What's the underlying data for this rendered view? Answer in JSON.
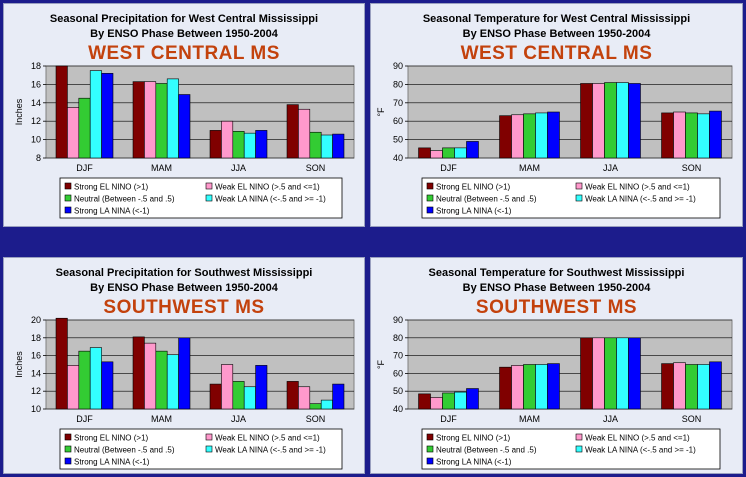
{
  "series_colors": [
    "#800000",
    "#ff99cc",
    "#33cc33",
    "#33ffff",
    "#0000ff"
  ],
  "legend": [
    "Strong EL NINO (>1)",
    "Weak EL NINO (>.5 and <=1)",
    "Neutral (Between -.5 and .5)",
    "Weak LA NINA (<-.5 and >= -1)",
    "Strong LA NINA (<-1)"
  ],
  "chart_data": [
    {
      "type": "bar",
      "title": "Seasonal Precipitation for West Central Mississippi",
      "subtitle": "By ENSO Phase Between 1950-2004",
      "region_label": "WEST CENTRAL MS",
      "ylabel": "Inches",
      "ylim": [
        8,
        18
      ],
      "yticks": [
        8,
        10,
        12,
        14,
        16,
        18
      ],
      "categories": [
        "DJF",
        "MAM",
        "JJA",
        "SON"
      ],
      "series": [
        {
          "name": "Strong EL NINO (>1)",
          "values": [
            18.0,
            16.3,
            11.0,
            13.8
          ]
        },
        {
          "name": "Weak EL NINO (>.5 and <=1)",
          "values": [
            13.5,
            16.3,
            12.0,
            13.3
          ]
        },
        {
          "name": "Neutral (Between -.5 and .5)",
          "values": [
            14.5,
            16.1,
            10.9,
            10.8
          ]
        },
        {
          "name": "Weak LA NINA (<-.5 and >= -1)",
          "values": [
            17.5,
            16.6,
            10.7,
            10.5
          ]
        },
        {
          "name": "Strong LA NINA (<-1)",
          "values": [
            17.2,
            14.9,
            11.0,
            10.6
          ]
        }
      ]
    },
    {
      "type": "bar",
      "title": "Seasonal Temperature for West Central Mississippi",
      "subtitle": "By ENSO Phase Between 1950-2004",
      "region_label": "WEST CENTRAL MS",
      "ylabel": "°F",
      "ylim": [
        40,
        90
      ],
      "yticks": [
        40,
        50,
        60,
        70,
        80,
        90
      ],
      "categories": [
        "DJF",
        "MAM",
        "JJA",
        "SON"
      ],
      "series": [
        {
          "name": "Strong EL NINO (>1)",
          "values": [
            45.5,
            63.0,
            80.5,
            64.5
          ]
        },
        {
          "name": "Weak EL NINO (>.5 and <=1)",
          "values": [
            44.0,
            63.5,
            80.5,
            65.0
          ]
        },
        {
          "name": "Neutral (Between -.5 and .5)",
          "values": [
            45.5,
            64.0,
            81.0,
            64.5
          ]
        },
        {
          "name": "Weak LA NINA (<-.5 and >= -1)",
          "values": [
            45.5,
            64.5,
            81.0,
            64.0
          ]
        },
        {
          "name": "Strong LA NINA (<-1)",
          "values": [
            49.0,
            65.0,
            80.5,
            65.5
          ]
        }
      ]
    },
    {
      "type": "bar",
      "title": "Seasonal Precipitation for Southwest Mississippi",
      "subtitle": "By ENSO Phase Between 1950-2004",
      "region_label": "SOUTHWEST MS",
      "ylabel": "Inches",
      "ylim": [
        10,
        20
      ],
      "yticks": [
        10,
        12,
        14,
        16,
        18,
        20
      ],
      "categories": [
        "DJF",
        "MAM",
        "JJA",
        "SON"
      ],
      "series": [
        {
          "name": "Strong EL NINO (>1)",
          "values": [
            20.2,
            18.1,
            12.8,
            13.1
          ]
        },
        {
          "name": "Weak EL NINO (>.5 and <=1)",
          "values": [
            14.9,
            17.4,
            15.0,
            12.5
          ]
        },
        {
          "name": "Neutral (Between -.5 and .5)",
          "values": [
            16.5,
            16.5,
            13.1,
            10.6
          ]
        },
        {
          "name": "Weak LA NINA (<-.5 and >= -1)",
          "values": [
            16.9,
            16.1,
            12.5,
            11.0
          ]
        },
        {
          "name": "Strong LA NINA (<-1)",
          "values": [
            15.3,
            18.0,
            14.9,
            12.8
          ]
        }
      ]
    },
    {
      "type": "bar",
      "title": "Seasonal Temperature for Southwest Mississippi",
      "subtitle": "By ENSO Phase Between 1950-2004",
      "region_label": "SOUTHWEST MS",
      "ylabel": "°F",
      "ylim": [
        40,
        90
      ],
      "yticks": [
        40,
        50,
        60,
        70,
        80,
        90
      ],
      "categories": [
        "DJF",
        "MAM",
        "JJA",
        "SON"
      ],
      "series": [
        {
          "name": "Strong EL NINO (>1)",
          "values": [
            48.5,
            63.5,
            80.0,
            65.5
          ]
        },
        {
          "name": "Weak EL NINO (>.5 and <=1)",
          "values": [
            46.5,
            64.5,
            80.0,
            66.0
          ]
        },
        {
          "name": "Neutral (Between -.5 and .5)",
          "values": [
            49.0,
            65.0,
            80.0,
            65.0
          ]
        },
        {
          "name": "Weak LA NINA (<-.5 and >= -1)",
          "values": [
            49.5,
            65.0,
            80.0,
            65.0
          ]
        },
        {
          "name": "Strong LA NINA (<-1)",
          "values": [
            51.5,
            65.5,
            80.0,
            66.5
          ]
        }
      ]
    }
  ]
}
